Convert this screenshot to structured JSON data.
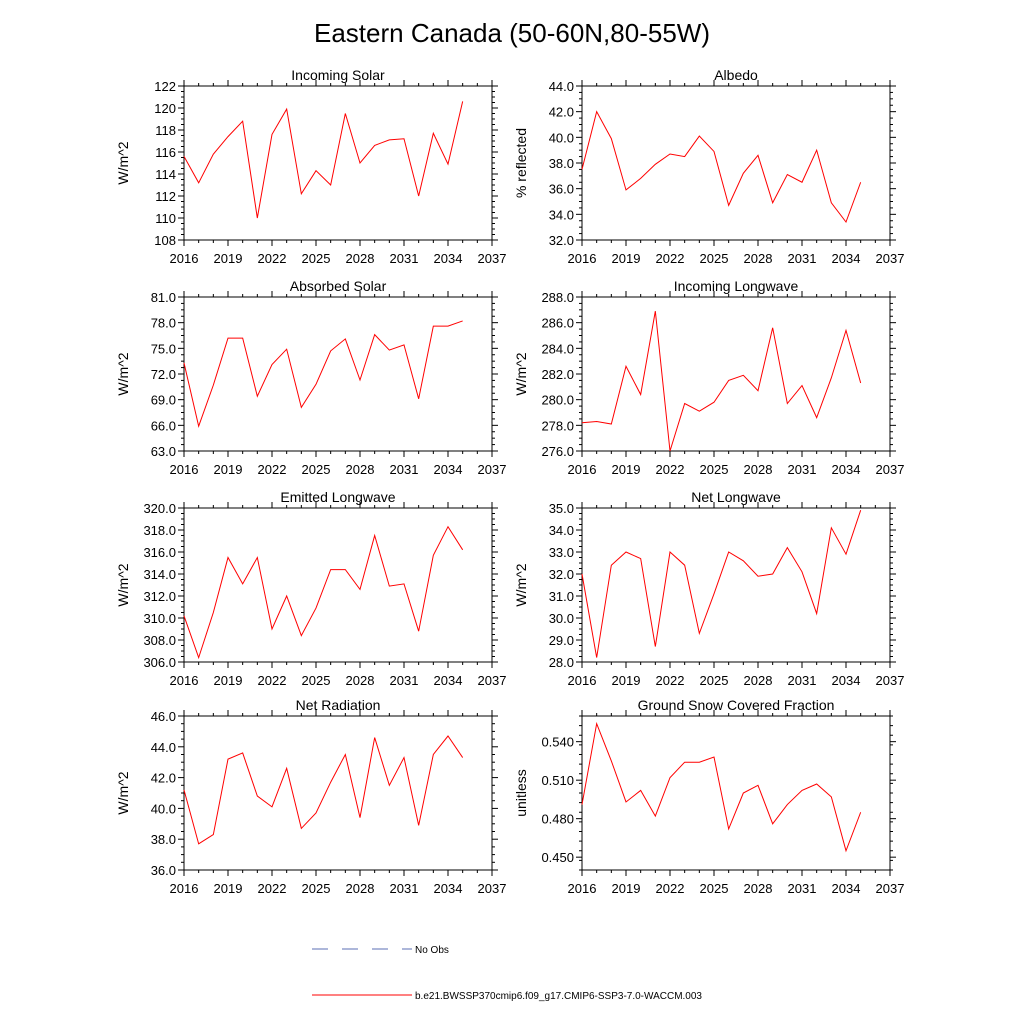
{
  "figure": {
    "title": "Eastern Canada (50-60N,80-55W)"
  },
  "legend": {
    "no_obs_label": "No Obs",
    "model_label": "b.e21.BWSSP370cmip6.f09_g17.CMIP6-SSP3-7.0-WACCM.003",
    "colors": {
      "obs": "#5b6fb6",
      "model": "#ff0000"
    }
  },
  "chart_data": [
    {
      "type": "line",
      "title": "Incoming Solar",
      "ylabel": "W/m^2",
      "xlabel": "",
      "xlim": [
        2016,
        2037
      ],
      "ylim": [
        108,
        122
      ],
      "xticks": [
        2016,
        2019,
        2022,
        2025,
        2028,
        2031,
        2034,
        2037
      ],
      "xtick_labels": [
        "2016",
        "2019",
        "2022",
        "2025",
        "2028",
        "2031",
        "2034",
        "2037"
      ],
      "yticks": [
        108,
        110,
        112,
        114,
        116,
        118,
        120,
        122
      ],
      "ytick_labels": [
        "108",
        "110",
        "112",
        "114",
        "116",
        "118",
        "120",
        "122"
      ],
      "series": [
        {
          "name": "b.e21.BWSSP370cmip6.f09_g17.CMIP6-SSP3-7.0-WACCM.003",
          "color": "#ff0000",
          "x": [
            2016,
            2017,
            2018,
            2019,
            2020,
            2021,
            2022,
            2023,
            2024,
            2025,
            2026,
            2027,
            2028,
            2029,
            2030,
            2031,
            2032,
            2033,
            2034,
            2035
          ],
          "values": [
            115.6,
            113.2,
            115.8,
            117.4,
            118.8,
            110.0,
            117.6,
            119.9,
            112.2,
            114.3,
            113.0,
            119.5,
            115.0,
            116.6,
            117.1,
            117.2,
            112.0,
            117.7,
            114.9,
            120.6
          ]
        }
      ]
    },
    {
      "type": "line",
      "title": "Albedo",
      "ylabel": "% reflected",
      "xlabel": "",
      "xlim": [
        2016,
        2037
      ],
      "ylim": [
        32,
        44
      ],
      "xticks": [
        2016,
        2019,
        2022,
        2025,
        2028,
        2031,
        2034,
        2037
      ],
      "xtick_labels": [
        "2016",
        "2019",
        "2022",
        "2025",
        "2028",
        "2031",
        "2034",
        "2037"
      ],
      "yticks": [
        32,
        34,
        36,
        38,
        40,
        42,
        44
      ],
      "ytick_labels": [
        "32.0",
        "34.0",
        "36.0",
        "38.0",
        "40.0",
        "42.0",
        "44.0"
      ],
      "series": [
        {
          "name": "b.e21.BWSSP370cmip6.f09_g17.CMIP6-SSP3-7.0-WACCM.003",
          "color": "#ff0000",
          "x": [
            2016,
            2017,
            2018,
            2019,
            2020,
            2021,
            2022,
            2023,
            2024,
            2025,
            2026,
            2027,
            2028,
            2029,
            2030,
            2031,
            2032,
            2033,
            2034,
            2035
          ],
          "values": [
            37.5,
            42.0,
            39.9,
            35.9,
            36.8,
            37.9,
            38.7,
            38.5,
            40.1,
            38.9,
            34.7,
            37.2,
            38.6,
            34.9,
            37.1,
            36.5,
            39.0,
            34.9,
            33.4,
            36.5
          ]
        }
      ]
    },
    {
      "type": "line",
      "title": "Absorbed Solar",
      "ylabel": "W/m^2",
      "xlabel": "",
      "xlim": [
        2016,
        2037
      ],
      "ylim": [
        63,
        81
      ],
      "xticks": [
        2016,
        2019,
        2022,
        2025,
        2028,
        2031,
        2034,
        2037
      ],
      "xtick_labels": [
        "2016",
        "2019",
        "2022",
        "2025",
        "2028",
        "2031",
        "2034",
        "2037"
      ],
      "yticks": [
        63,
        66,
        69,
        72,
        75,
        78,
        81
      ],
      "ytick_labels": [
        "63.0",
        "66.0",
        "69.0",
        "72.0",
        "75.0",
        "78.0",
        "81.0"
      ],
      "series": [
        {
          "name": "b.e21.BWSSP370cmip6.f09_g17.CMIP6-SSP3-7.0-WACCM.003",
          "color": "#ff0000",
          "x": [
            2016,
            2017,
            2018,
            2019,
            2020,
            2021,
            2022,
            2023,
            2024,
            2025,
            2026,
            2027,
            2028,
            2029,
            2030,
            2031,
            2032,
            2033,
            2034,
            2035
          ],
          "values": [
            73.3,
            65.9,
            70.7,
            76.2,
            76.2,
            69.4,
            73.1,
            74.9,
            68.1,
            70.8,
            74.7,
            76.1,
            71.3,
            76.6,
            74.8,
            75.4,
            69.1,
            77.6,
            77.6,
            78.2
          ]
        }
      ]
    },
    {
      "type": "line",
      "title": "Incoming Longwave",
      "ylabel": "W/m^2",
      "xlabel": "",
      "xlim": [
        2016,
        2037
      ],
      "ylim": [
        276,
        288
      ],
      "xticks": [
        2016,
        2019,
        2022,
        2025,
        2028,
        2031,
        2034,
        2037
      ],
      "xtick_labels": [
        "2016",
        "2019",
        "2022",
        "2025",
        "2028",
        "2031",
        "2034",
        "2037"
      ],
      "yticks": [
        276,
        278,
        280,
        282,
        284,
        286,
        288
      ],
      "ytick_labels": [
        "276.0",
        "278.0",
        "280.0",
        "282.0",
        "284.0",
        "286.0",
        "288.0"
      ],
      "series": [
        {
          "name": "b.e21.BWSSP370cmip6.f09_g17.CMIP6-SSP3-7.0-WACCM.003",
          "color": "#ff0000",
          "x": [
            2016,
            2017,
            2018,
            2019,
            2020,
            2021,
            2022,
            2023,
            2024,
            2025,
            2026,
            2027,
            2028,
            2029,
            2030,
            2031,
            2032,
            2033,
            2034,
            2035
          ],
          "values": [
            278.2,
            278.3,
            278.1,
            282.6,
            280.4,
            286.9,
            276.0,
            279.7,
            279.1,
            279.8,
            281.5,
            281.9,
            280.7,
            285.6,
            279.7,
            281.1,
            278.6,
            281.7,
            285.4,
            281.3
          ]
        }
      ]
    },
    {
      "type": "line",
      "title": "Emitted Longwave",
      "ylabel": "W/m^2",
      "xlabel": "",
      "xlim": [
        2016,
        2037
      ],
      "ylim": [
        306,
        320
      ],
      "xticks": [
        2016,
        2019,
        2022,
        2025,
        2028,
        2031,
        2034,
        2037
      ],
      "xtick_labels": [
        "2016",
        "2019",
        "2022",
        "2025",
        "2028",
        "2031",
        "2034",
        "2037"
      ],
      "yticks": [
        306,
        308,
        310,
        312,
        314,
        316,
        318,
        320
      ],
      "ytick_labels": [
        "306.0",
        "308.0",
        "310.0",
        "312.0",
        "314.0",
        "316.0",
        "318.0",
        "320.0"
      ],
      "series": [
        {
          "name": "b.e21.BWSSP370cmip6.f09_g17.CMIP6-SSP3-7.0-WACCM.003",
          "color": "#ff0000",
          "x": [
            2016,
            2017,
            2018,
            2019,
            2020,
            2021,
            2022,
            2023,
            2024,
            2025,
            2026,
            2027,
            2028,
            2029,
            2030,
            2031,
            2032,
            2033,
            2034,
            2035
          ],
          "values": [
            310.2,
            306.4,
            310.5,
            315.5,
            313.1,
            315.5,
            309.0,
            312.0,
            308.4,
            310.9,
            314.4,
            314.4,
            312.6,
            317.5,
            312.9,
            313.1,
            308.8,
            315.7,
            318.3,
            316.2
          ]
        }
      ]
    },
    {
      "type": "line",
      "title": "Net Longwave",
      "ylabel": "W/m^2",
      "xlabel": "",
      "xlim": [
        2016,
        2037
      ],
      "ylim": [
        28,
        35
      ],
      "xticks": [
        2016,
        2019,
        2022,
        2025,
        2028,
        2031,
        2034,
        2037
      ],
      "xtick_labels": [
        "2016",
        "2019",
        "2022",
        "2025",
        "2028",
        "2031",
        "2034",
        "2037"
      ],
      "yticks": [
        28,
        29,
        30,
        31,
        32,
        33,
        34,
        35
      ],
      "ytick_labels": [
        "28.0",
        "29.0",
        "30.0",
        "31.0",
        "32.0",
        "33.0",
        "34.0",
        "35.0"
      ],
      "series": [
        {
          "name": "b.e21.BWSSP370cmip6.f09_g17.CMIP6-SSP3-7.0-WACCM.003",
          "color": "#ff0000",
          "x": [
            2016,
            2017,
            2018,
            2019,
            2020,
            2021,
            2022,
            2023,
            2024,
            2025,
            2026,
            2027,
            2028,
            2029,
            2030,
            2031,
            2032,
            2033,
            2034,
            2035
          ],
          "values": [
            32.0,
            28.2,
            32.4,
            33.0,
            32.7,
            28.7,
            33.0,
            32.4,
            29.3,
            31.1,
            33.0,
            32.6,
            31.9,
            32.0,
            33.2,
            32.1,
            30.2,
            34.1,
            32.9,
            34.9
          ]
        }
      ]
    },
    {
      "type": "line",
      "title": "Net Radiation",
      "ylabel": "W/m^2",
      "xlabel": "",
      "xlim": [
        2016,
        2037
      ],
      "ylim": [
        36,
        46
      ],
      "xticks": [
        2016,
        2019,
        2022,
        2025,
        2028,
        2031,
        2034,
        2037
      ],
      "xtick_labels": [
        "2016",
        "2019",
        "2022",
        "2025",
        "2028",
        "2031",
        "2034",
        "2037"
      ],
      "yticks": [
        36,
        38,
        40,
        42,
        44,
        46
      ],
      "ytick_labels": [
        "36.0",
        "38.0",
        "40.0",
        "42.0",
        "44.0",
        "46.0"
      ],
      "series": [
        {
          "name": "b.e21.BWSSP370cmip6.f09_g17.CMIP6-SSP3-7.0-WACCM.003",
          "color": "#ff0000",
          "x": [
            2016,
            2017,
            2018,
            2019,
            2020,
            2021,
            2022,
            2023,
            2024,
            2025,
            2026,
            2027,
            2028,
            2029,
            2030,
            2031,
            2032,
            2033,
            2034,
            2035
          ],
          "values": [
            41.2,
            37.7,
            38.3,
            43.2,
            43.6,
            40.8,
            40.1,
            42.6,
            38.7,
            39.7,
            41.7,
            43.5,
            39.4,
            44.6,
            41.5,
            43.3,
            38.9,
            43.5,
            44.7,
            43.3
          ]
        }
      ]
    },
    {
      "type": "line",
      "title": "Ground Snow Covered Fraction",
      "ylabel": "unitless",
      "xlabel": "",
      "xlim": [
        2016,
        2037
      ],
      "ylim": [
        0.44,
        0.56
      ],
      "xticks": [
        2016,
        2019,
        2022,
        2025,
        2028,
        2031,
        2034,
        2037
      ],
      "xtick_labels": [
        "2016",
        "2019",
        "2022",
        "2025",
        "2028",
        "2031",
        "2034",
        "2037"
      ],
      "yticks": [
        0.45,
        0.48,
        0.51,
        0.54
      ],
      "ytick_labels": [
        "0.450",
        "0.480",
        "0.510",
        "0.540"
      ],
      "series": [
        {
          "name": "b.e21.BWSSP370cmip6.f09_g17.CMIP6-SSP3-7.0-WACCM.003",
          "color": "#ff0000",
          "x": [
            2016,
            2017,
            2018,
            2019,
            2020,
            2021,
            2022,
            2023,
            2024,
            2025,
            2026,
            2027,
            2028,
            2029,
            2030,
            2031,
            2032,
            2033,
            2034,
            2035
          ],
          "values": [
            0.491,
            0.554,
            0.525,
            0.493,
            0.502,
            0.482,
            0.512,
            0.524,
            0.524,
            0.528,
            0.472,
            0.5,
            0.506,
            0.476,
            0.491,
            0.502,
            0.507,
            0.497,
            0.455,
            0.485
          ]
        }
      ]
    }
  ]
}
